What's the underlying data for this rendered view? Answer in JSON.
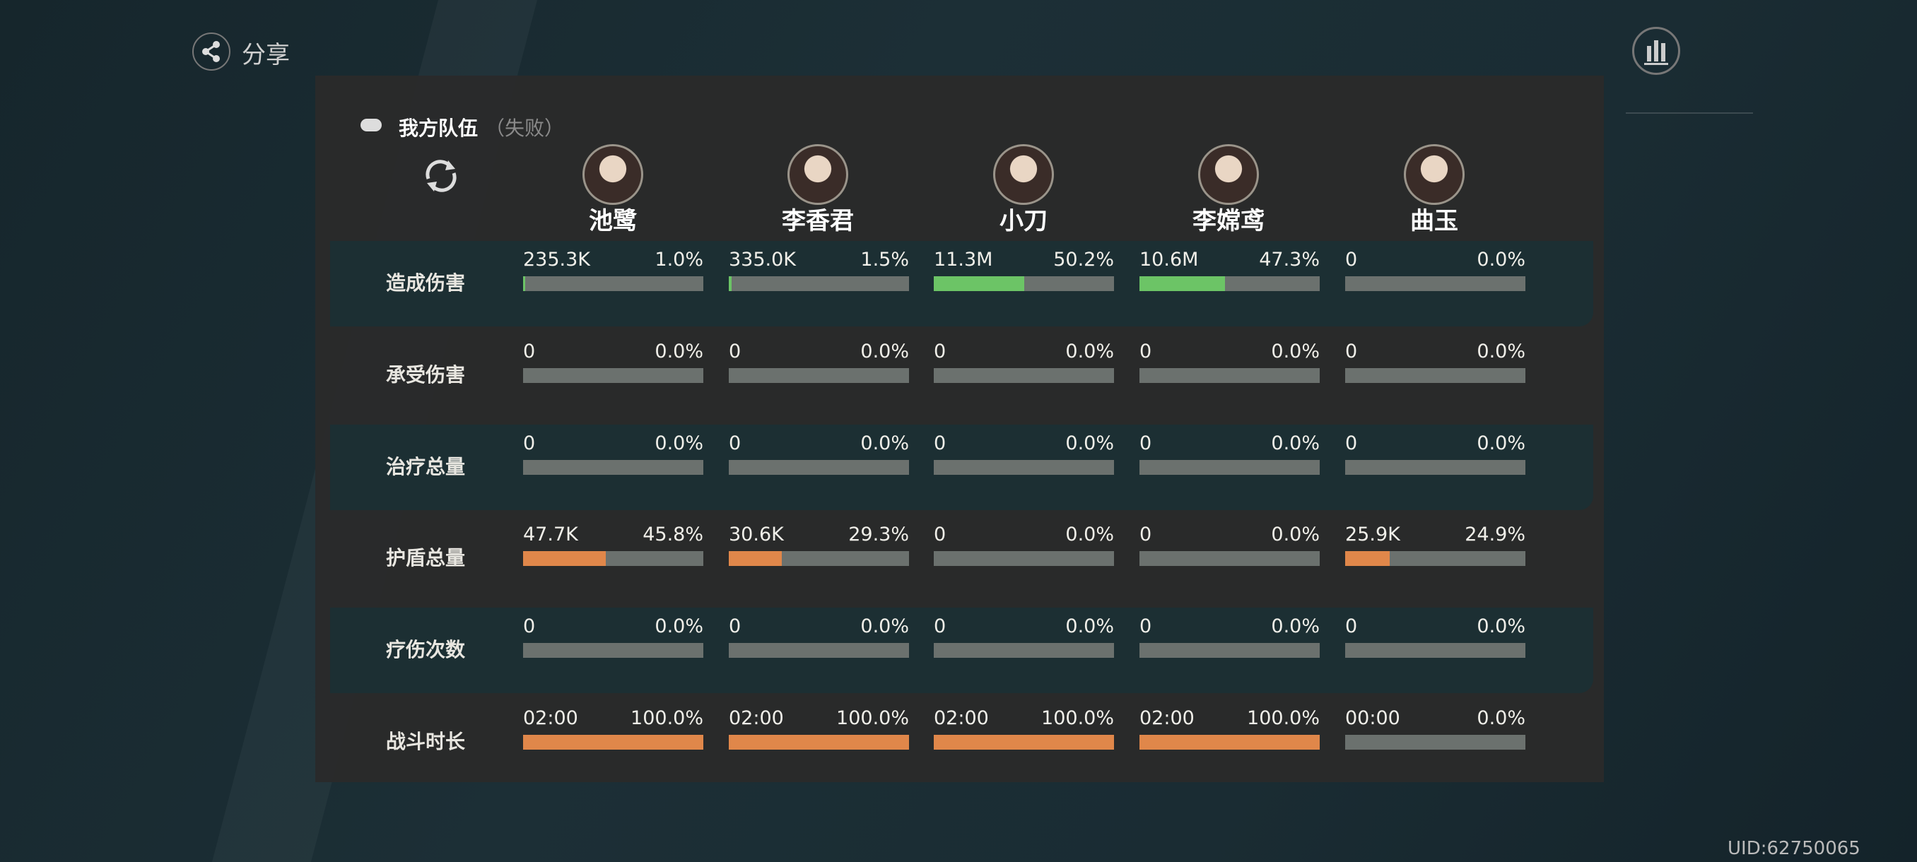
{
  "header": {
    "share": "分享"
  },
  "team": {
    "title": "我方队伍",
    "status": "（失败）"
  },
  "characters": [
    "池鹭",
    "李香君",
    "小刀",
    "李嫦鸢",
    "曲玉"
  ],
  "rows": [
    {
      "label": "造成伤害",
      "color": "#6cc466",
      "cells": [
        {
          "value": "235.3K",
          "percent": 1.0,
          "percent_label": "1.0%"
        },
        {
          "value": "335.0K",
          "percent": 1.5,
          "percent_label": "1.5%"
        },
        {
          "value": "11.3M",
          "percent": 50.2,
          "percent_label": "50.2%"
        },
        {
          "value": "10.6M",
          "percent": 47.3,
          "percent_label": "47.3%"
        },
        {
          "value": "0",
          "percent": 0.0,
          "percent_label": "0.0%"
        }
      ]
    },
    {
      "label": "承受伤害",
      "color": "#e0874a",
      "cells": [
        {
          "value": "0",
          "percent": 0.0,
          "percent_label": "0.0%"
        },
        {
          "value": "0",
          "percent": 0.0,
          "percent_label": "0.0%"
        },
        {
          "value": "0",
          "percent": 0.0,
          "percent_label": "0.0%"
        },
        {
          "value": "0",
          "percent": 0.0,
          "percent_label": "0.0%"
        },
        {
          "value": "0",
          "percent": 0.0,
          "percent_label": "0.0%"
        }
      ]
    },
    {
      "label": "治疗总量",
      "color": "#6cc466",
      "cells": [
        {
          "value": "0",
          "percent": 0.0,
          "percent_label": "0.0%"
        },
        {
          "value": "0",
          "percent": 0.0,
          "percent_label": "0.0%"
        },
        {
          "value": "0",
          "percent": 0.0,
          "percent_label": "0.0%"
        },
        {
          "value": "0",
          "percent": 0.0,
          "percent_label": "0.0%"
        },
        {
          "value": "0",
          "percent": 0.0,
          "percent_label": "0.0%"
        }
      ]
    },
    {
      "label": "护盾总量",
      "color": "#e0874a",
      "cells": [
        {
          "value": "47.7K",
          "percent": 45.8,
          "percent_label": "45.8%"
        },
        {
          "value": "30.6K",
          "percent": 29.3,
          "percent_label": "29.3%"
        },
        {
          "value": "0",
          "percent": 0.0,
          "percent_label": "0.0%"
        },
        {
          "value": "0",
          "percent": 0.0,
          "percent_label": "0.0%"
        },
        {
          "value": "25.9K",
          "percent": 24.9,
          "percent_label": "24.9%"
        }
      ]
    },
    {
      "label": "疗伤次数",
      "color": "#6cc466",
      "cells": [
        {
          "value": "0",
          "percent": 0.0,
          "percent_label": "0.0%"
        },
        {
          "value": "0",
          "percent": 0.0,
          "percent_label": "0.0%"
        },
        {
          "value": "0",
          "percent": 0.0,
          "percent_label": "0.0%"
        },
        {
          "value": "0",
          "percent": 0.0,
          "percent_label": "0.0%"
        },
        {
          "value": "0",
          "percent": 0.0,
          "percent_label": "0.0%"
        }
      ]
    },
    {
      "label": "战斗时长",
      "color": "#e0874a",
      "cells": [
        {
          "value": "02:00",
          "percent": 100.0,
          "percent_label": "100.0%"
        },
        {
          "value": "02:00",
          "percent": 100.0,
          "percent_label": "100.0%"
        },
        {
          "value": "02:00",
          "percent": 100.0,
          "percent_label": "100.0%"
        },
        {
          "value": "02:00",
          "percent": 100.0,
          "percent_label": "100.0%"
        },
        {
          "value": "00:00",
          "percent": 0.0,
          "percent_label": "0.0%"
        }
      ]
    }
  ],
  "uid": "UID:62750065"
}
